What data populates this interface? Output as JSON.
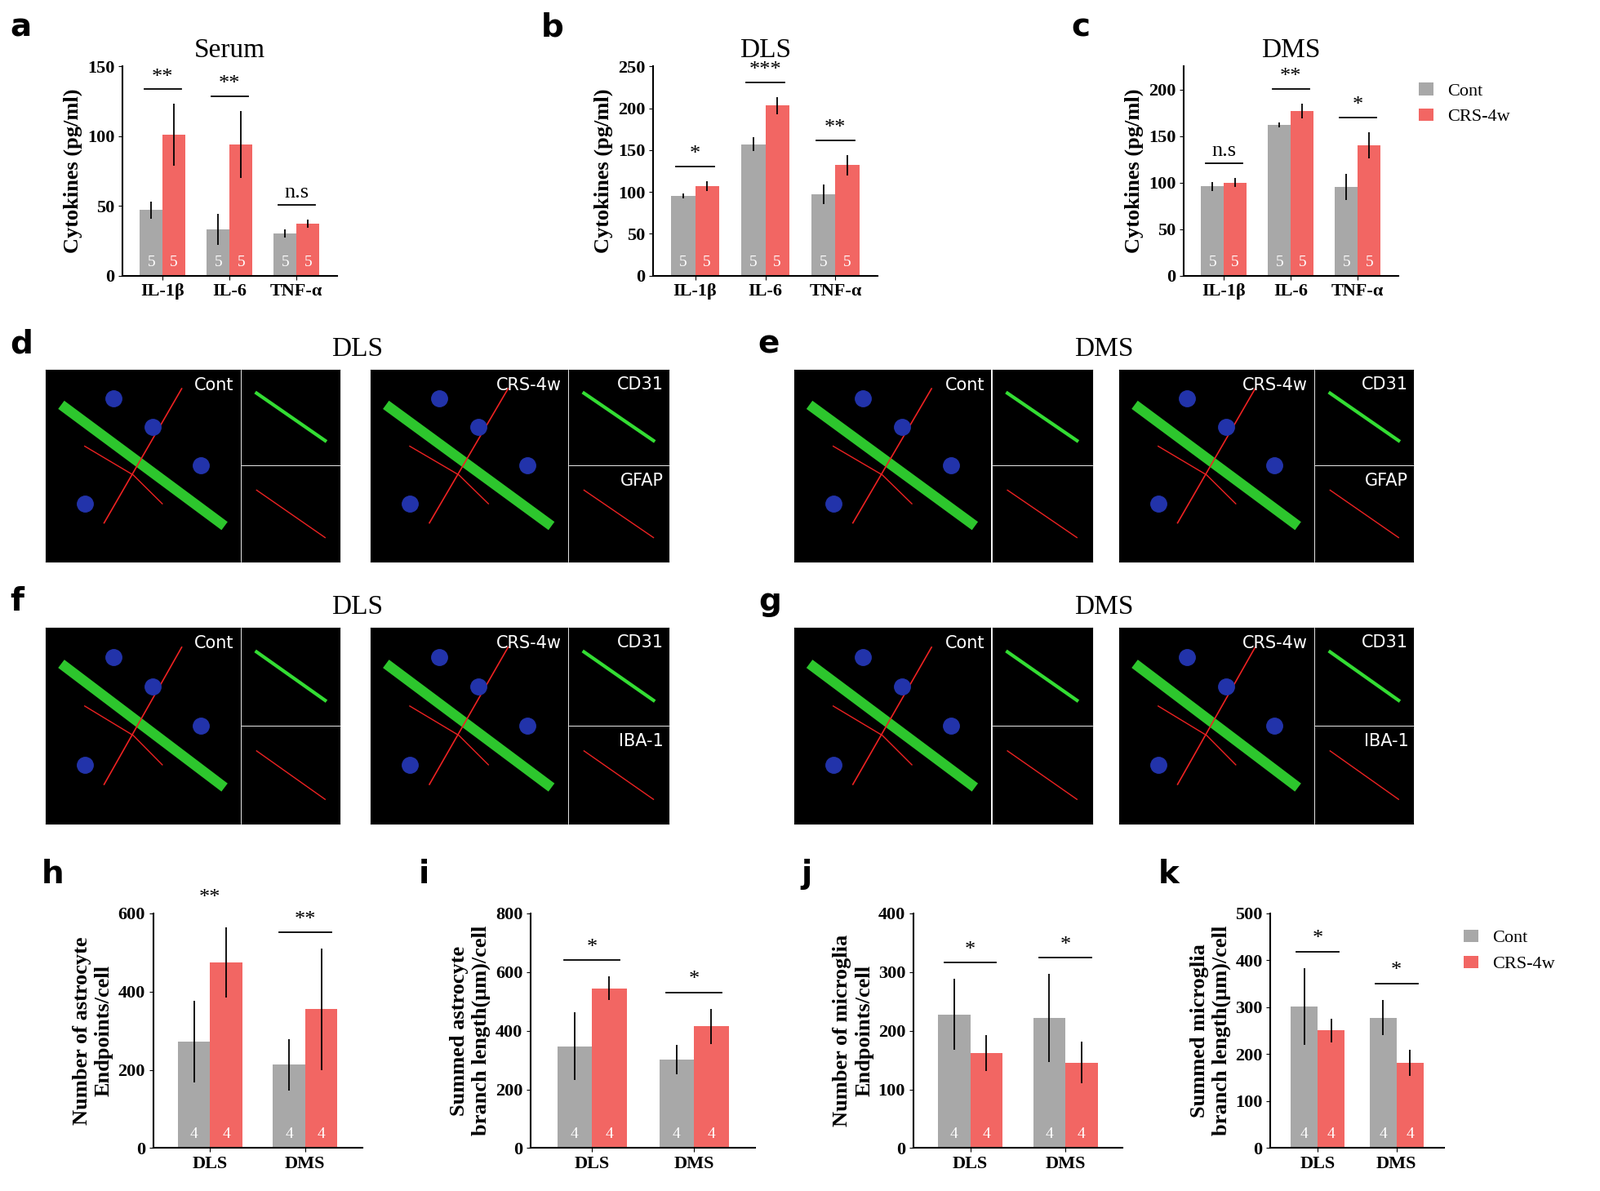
{
  "chart_data": [
    {
      "type": "bar",
      "label": "a",
      "title": "Serum",
      "y_label": "Cytokines (pg/ml)",
      "categories": [
        "IL-1β",
        "IL-6",
        "TNF-α"
      ],
      "ylim": [
        0,
        150
      ],
      "yticks": [
        0,
        50,
        100,
        150
      ],
      "series": [
        {
          "name": "Cont",
          "color": "#a8a8a8",
          "values": [
            47,
            33,
            30
          ],
          "error": [
            6,
            11,
            3
          ],
          "n": [
            5,
            5,
            5
          ]
        },
        {
          "name": "CRS-4w",
          "color": "#f26663",
          "values": [
            101,
            94,
            37
          ],
          "error": [
            22,
            24,
            3
          ],
          "n": [
            5,
            5,
            5
          ]
        }
      ],
      "significance": [
        "**",
        "**",
        "n.s"
      ]
    },
    {
      "type": "bar",
      "label": "b",
      "title": "DLS",
      "y_label": "Cytokines (pg/ml)",
      "categories": [
        "IL-1β",
        "IL-6",
        "TNF-α"
      ],
      "ylim": [
        0,
        250
      ],
      "yticks": [
        0,
        50,
        100,
        150,
        200,
        250
      ],
      "series": [
        {
          "name": "Cont",
          "color": "#a8a8a8",
          "values": [
            95,
            157,
            97
          ],
          "error": [
            3,
            8,
            12
          ],
          "n": [
            5,
            5,
            5
          ]
        },
        {
          "name": "CRS-4w",
          "color": "#f26663",
          "values": [
            107,
            203,
            132
          ],
          "error": [
            6,
            10,
            12
          ],
          "n": [
            5,
            5,
            5
          ]
        }
      ],
      "significance": [
        "*",
        "***",
        "**"
      ]
    },
    {
      "type": "bar",
      "label": "c",
      "title": "DMS",
      "y_label": "Cytokines (pg/ml)",
      "categories": [
        "IL-1β",
        "IL-6",
        "TNF-α"
      ],
      "ylim": [
        0,
        225
      ],
      "yticks": [
        0,
        50,
        100,
        150,
        200
      ],
      "legend": "upper left",
      "series": [
        {
          "name": "Cont",
          "color": "#a8a8a8",
          "values": [
            96,
            162,
            95
          ],
          "error": [
            5,
            3,
            14
          ],
          "n": [
            5,
            5,
            5
          ]
        },
        {
          "name": "CRS-4w",
          "color": "#f26663",
          "values": [
            100,
            177,
            140
          ],
          "error": [
            5,
            8,
            14
          ],
          "n": [
            5,
            5,
            5
          ]
        }
      ],
      "significance": [
        "n.s",
        "**",
        "*"
      ]
    },
    {
      "type": "bar",
      "label": "h",
      "y_label": "Number of astrocyte\nEndpoints/cell",
      "categories": [
        "DLS",
        "DMS"
      ],
      "ylim": [
        0,
        600
      ],
      "yticks": [
        0,
        200,
        400,
        600
      ],
      "series": [
        {
          "name": "Cont",
          "color": "#a8a8a8",
          "values": [
            272,
            213
          ],
          "error": [
            105,
            65
          ],
          "n": [
            4,
            4
          ]
        },
        {
          "name": "CRS-4w",
          "color": "#f26663",
          "values": [
            475,
            355
          ],
          "error": [
            90,
            155
          ],
          "n": [
            4,
            4
          ]
        }
      ],
      "significance": [
        "**",
        "**"
      ]
    },
    {
      "type": "bar",
      "label": "i",
      "y_label": "Summed astrocyte\nbranch length(μm)/cell",
      "categories": [
        "DLS",
        "DMS"
      ],
      "ylim": [
        0,
        800
      ],
      "yticks": [
        0,
        200,
        400,
        600,
        800
      ],
      "series": [
        {
          "name": "Cont",
          "color": "#a8a8a8",
          "values": [
            347,
            303
          ],
          "error": [
            115,
            50
          ],
          "n": [
            4,
            4
          ]
        },
        {
          "name": "CRS-4w",
          "color": "#f26663",
          "values": [
            545,
            415
          ],
          "error": [
            40,
            60
          ],
          "n": [
            4,
            4
          ]
        }
      ],
      "significance": [
        "*",
        "*"
      ]
    },
    {
      "type": "bar",
      "label": "j",
      "y_label": "Number of microglia\nEndpoints/cell",
      "categories": [
        "DLS",
        "DMS"
      ],
      "ylim": [
        0,
        400
      ],
      "yticks": [
        0,
        100,
        200,
        300,
        400
      ],
      "series": [
        {
          "name": "Cont",
          "color": "#a8a8a8",
          "values": [
            228,
            222
          ],
          "error": [
            60,
            75
          ],
          "n": [
            4,
            4
          ]
        },
        {
          "name": "CRS-4w",
          "color": "#f26663",
          "values": [
            162,
            146
          ],
          "error": [
            30,
            35
          ],
          "n": [
            4,
            4
          ]
        }
      ],
      "significance": [
        "*",
        "*"
      ]
    },
    {
      "type": "bar",
      "label": "k",
      "y_label": "Summed microglia\nbranch length(μm)/cell",
      "categories": [
        "DLS",
        "DMS"
      ],
      "ylim": [
        0,
        500
      ],
      "yticks": [
        0,
        100,
        200,
        300,
        400,
        500
      ],
      "legend": "upper left",
      "series": [
        {
          "name": "Cont",
          "color": "#a8a8a8",
          "values": [
            302,
            278
          ],
          "error": [
            82,
            38
          ],
          "n": [
            4,
            4
          ]
        },
        {
          "name": "CRS-4w",
          "color": "#f26663",
          "values": [
            251,
            182
          ],
          "error": [
            25,
            28
          ],
          "n": [
            4,
            4
          ]
        }
      ],
      "significance": [
        "*",
        "*"
      ]
    }
  ],
  "image_panels": [
    {
      "label": "d",
      "title": "DLS",
      "images": [
        {
          "label": "Cont",
          "channels": []
        },
        {
          "label": "CRS-4w",
          "channels": [
            "CD31",
            "GFAP"
          ]
        }
      ]
    },
    {
      "label": "e",
      "title": "DMS",
      "images": [
        {
          "label": "Cont",
          "channels": []
        },
        {
          "label": "CRS-4w",
          "channels": [
            "CD31",
            "GFAP"
          ]
        }
      ]
    },
    {
      "label": "f",
      "title": "DLS",
      "images": [
        {
          "label": "Cont",
          "channels": []
        },
        {
          "label": "CRS-4w",
          "channels": [
            "CD31",
            "IBA-1"
          ]
        }
      ]
    },
    {
      "label": "g",
      "title": "DMS",
      "images": [
        {
          "label": "Cont",
          "channels": []
        },
        {
          "label": "CRS-4w",
          "channels": [
            "CD31",
            "IBA-1"
          ]
        }
      ]
    }
  ]
}
